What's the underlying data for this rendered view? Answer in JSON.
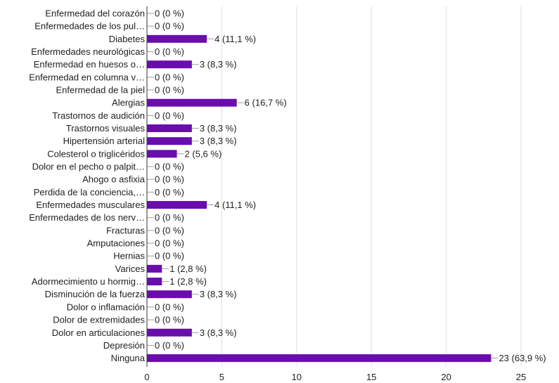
{
  "chart_data": {
    "type": "bar",
    "orientation": "horizontal",
    "bar_color": "#6a0dad",
    "grid": true,
    "xlim": [
      0,
      25
    ],
    "x_ticks": [
      0,
      5,
      10,
      15,
      20,
      25
    ],
    "categories": [
      "Enfermedad del corazón",
      "Enfermedades de los pul…",
      "Diabetes",
      "Enfermedades neurológicas",
      "Enfermedad en huesos o…",
      "Enfermedad en columna v…",
      "Enfermedad de la piel",
      "Alergias",
      "Trastornos de audición",
      "Trastornos visuales",
      "Hipertensión arterial",
      "Colesterol o triglicéridos",
      "Dolor en el pecho o palpit…",
      "Ahogo o asfixia",
      "Perdida de la conciencia,…",
      "Enfermedades musculares",
      "Enfermedades de los nerv…",
      "Fracturas",
      "Amputaciones",
      "Hernias",
      "Varices",
      "Adormecimiento u hormig…",
      "Disminución de la fuerza",
      "Dolor o inflamación",
      "Dolor de extremidades",
      "Dolor en articulaciones",
      "Depresión",
      "Ninguna"
    ],
    "values": [
      0,
      0,
      4,
      0,
      3,
      0,
      0,
      6,
      0,
      3,
      3,
      2,
      0,
      0,
      0,
      4,
      0,
      0,
      0,
      0,
      1,
      1,
      3,
      0,
      0,
      3,
      0,
      23
    ],
    "value_labels": [
      "0 (0 %)",
      "0 (0 %)",
      "4 (11,1 %)",
      "0 (0 %)",
      "3 (8,3 %)",
      "0 (0 %)",
      "0 (0 %)",
      "6 (16,7 %)",
      "0 (0 %)",
      "3 (8,3 %)",
      "3 (8,3 %)",
      "2 (5,6 %)",
      "0 (0 %)",
      "0 (0 %)",
      "0 (0 %)",
      "4 (11,1 %)",
      "0 (0 %)",
      "0 (0 %)",
      "0 (0 %)",
      "0 (0 %)",
      "1 (2,8 %)",
      "1 (2,8 %)",
      "3 (8,3 %)",
      "0 (0 %)",
      "0 (0 %)",
      "3 (8,3 %)",
      "0 (0 %)",
      "23 (63,9 %)"
    ]
  }
}
